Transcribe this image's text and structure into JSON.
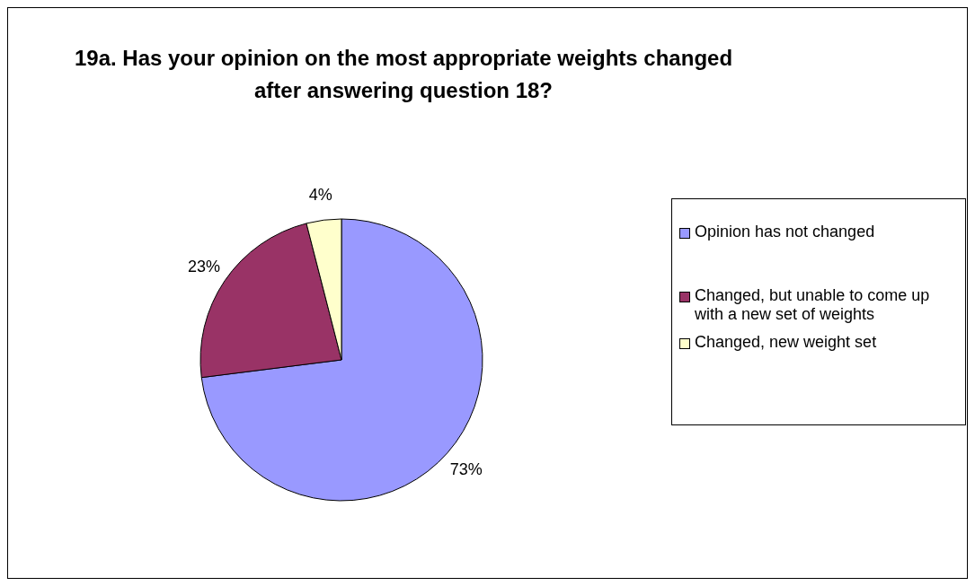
{
  "chart_data": {
    "type": "pie",
    "title": "19a. Has your opinion on the most appropriate weights changed after answering question 18?",
    "categories": [
      "Opinion has not changed",
      "Changed, but unable to come up with a new set of weights",
      "Changed, new weight set"
    ],
    "values": [
      73,
      23,
      4
    ],
    "colors": [
      "#9999ff",
      "#993366",
      "#ffffcc"
    ],
    "value_labels": [
      "73%",
      "23%",
      "4%"
    ],
    "legend": "right"
  }
}
